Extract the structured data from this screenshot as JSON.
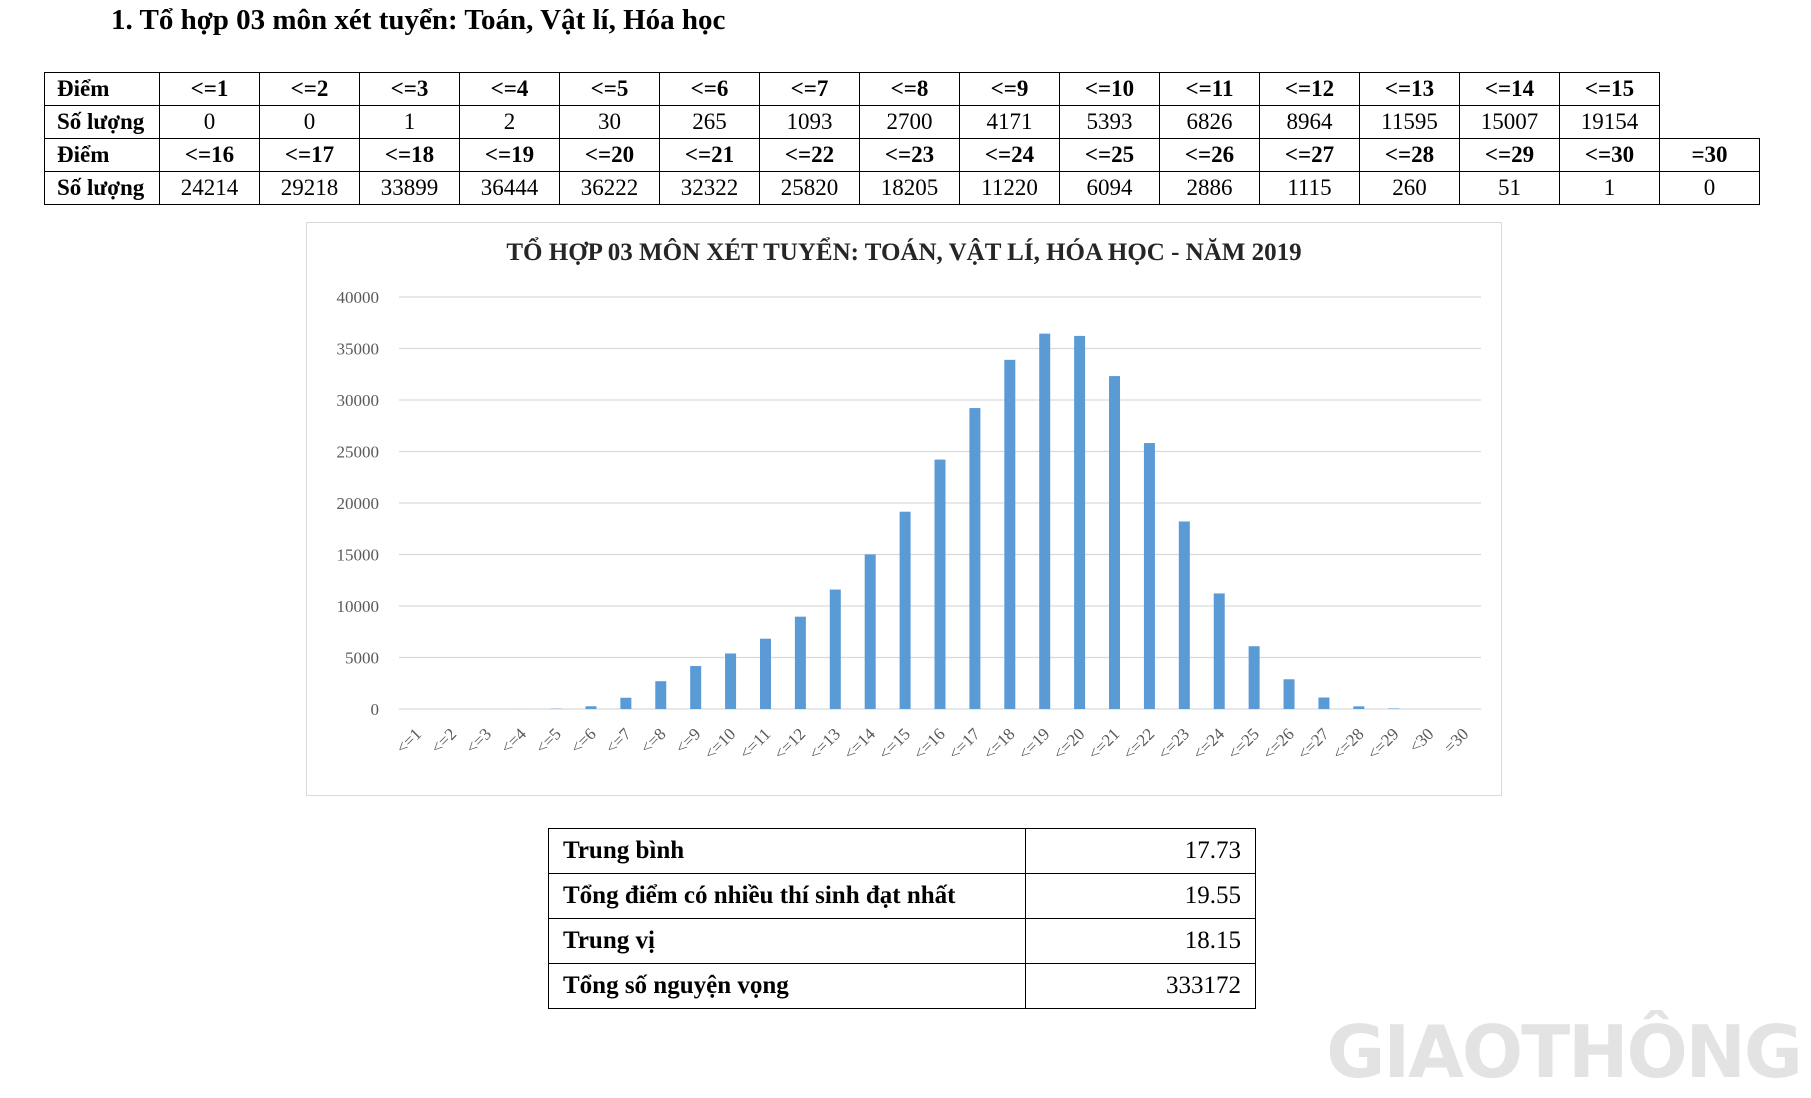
{
  "heading": "1. Tổ hợp 03 môn xét tuyển: Toán, Vật lí, Hóa học",
  "table": {
    "row_label_score": "Điểm",
    "row_label_count": "Số lượng",
    "part1": {
      "scores": [
        "<=1",
        "<=2",
        "<=3",
        "<=4",
        "<=5",
        "<=6",
        "<=7",
        "<=8",
        "<=9",
        "<=10",
        "<=11",
        "<=12",
        "<=13",
        "<=14",
        "<=15"
      ],
      "counts": [
        "0",
        "0",
        "1",
        "2",
        "30",
        "265",
        "1093",
        "2700",
        "4171",
        "5393",
        "6826",
        "8964",
        "11595",
        "15007",
        "19154"
      ]
    },
    "part2": {
      "scores": [
        "<=16",
        "<=17",
        "<=18",
        "<=19",
        "<=20",
        "<=21",
        "<=22",
        "<=23",
        "<=24",
        "<=25",
        "<=26",
        "<=27",
        "<=28",
        "<=29",
        "<=30",
        "=30"
      ],
      "counts": [
        "24214",
        "29218",
        "33899",
        "36444",
        "36222",
        "32322",
        "25820",
        "18205",
        "11220",
        "6094",
        "2886",
        "1115",
        "260",
        "51",
        "1",
        "0"
      ]
    }
  },
  "chart_data": {
    "type": "bar",
    "title": "TỔ HỢP 03 MÔN XÉT TUYỂN: TOÁN, VẬT LÍ, HÓA HỌC - NĂM 2019",
    "categories": [
      "<=1",
      "<=2",
      "<=3",
      "<=4",
      "<=5",
      "<=6",
      "<=7",
      "<=8",
      "<=9",
      "<=10",
      "<=11",
      "<=12",
      "<=13",
      "<=14",
      "<=15",
      "<=16",
      "<=17",
      "<=18",
      "<=19",
      "<=20",
      "<=21",
      "<=22",
      "<=23",
      "<=24",
      "<=25",
      "<=26",
      "<=27",
      "<=28",
      "<=29",
      "<30",
      "=30"
    ],
    "values": [
      0,
      0,
      1,
      2,
      30,
      265,
      1093,
      2700,
      4171,
      5393,
      6826,
      8964,
      11595,
      15007,
      19154,
      24214,
      29218,
      33899,
      36444,
      36222,
      32322,
      25820,
      18205,
      11220,
      6094,
      2886,
      1115,
      260,
      51,
      1,
      0
    ],
    "xlabel": "",
    "ylabel": "",
    "ylim": [
      0,
      40000
    ],
    "yticks": [
      "0",
      "5000",
      "10000",
      "15000",
      "20000",
      "25000",
      "30000",
      "35000",
      "40000"
    ],
    "bar_color": "#5b9bd5",
    "grid": true,
    "legend": "none"
  },
  "summary": [
    {
      "label": "Trung bình",
      "value": "17.73"
    },
    {
      "label": "Tổng điểm có nhiều thí sinh đạt nhất",
      "value": "19.55"
    },
    {
      "label": "Trung vị",
      "value": "18.15"
    },
    {
      "label": "Tổng số nguyện vọng",
      "value": "333172"
    }
  ],
  "watermark": "GIAOTHÔNG"
}
